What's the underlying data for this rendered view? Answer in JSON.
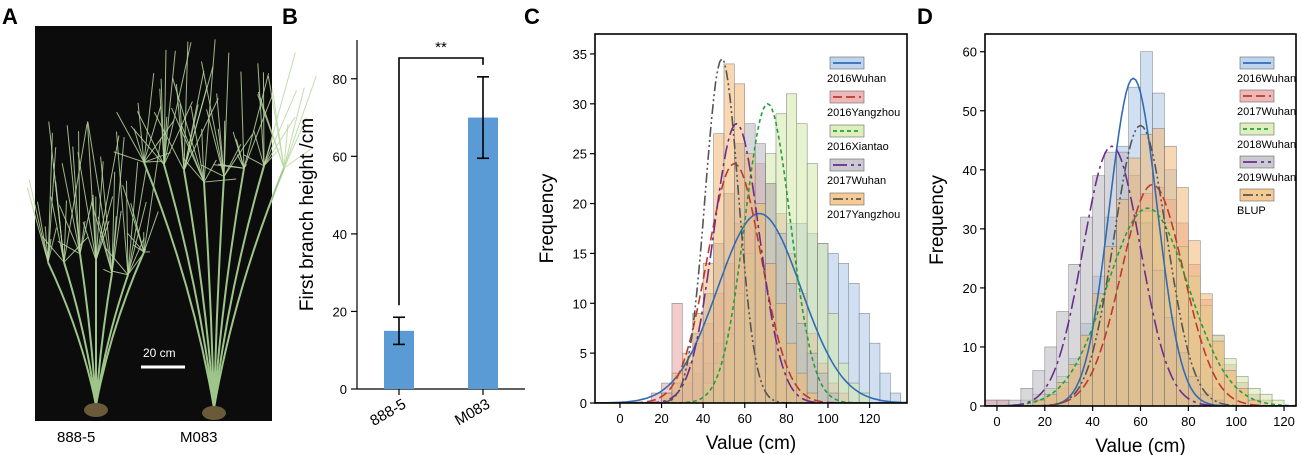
{
  "panel_labels": [
    "A",
    "B",
    "C",
    "D"
  ],
  "photo": {
    "left_label": "888-5",
    "right_label": "M083",
    "scale_label": "20 cm"
  },
  "colors": {
    "bar": "#5b9bd5",
    "photo_bg": "#0c0c0c",
    "plant_stem": "#9ec58a",
    "plant_pod": "#b8d6a0"
  },
  "chart_data": [
    {
      "panel": "B",
      "type": "bar",
      "categories": [
        "888-5",
        "M083"
      ],
      "values": [
        15,
        70
      ],
      "errors": [
        3.5,
        10.5
      ],
      "ylabel": "First branch height /cm",
      "xlabel": "",
      "ylim": [
        0,
        90
      ],
      "yticks": [
        0,
        20,
        40,
        60,
        80
      ],
      "significance": "**"
    },
    {
      "panel": "C",
      "type": "histogram",
      "xlabel": "Value (cm)",
      "ylabel": "Frequency",
      "xlim": [
        -12,
        138
      ],
      "ylim": [
        0,
        37
      ],
      "xticks": [
        0,
        20,
        40,
        60,
        80,
        100,
        120
      ],
      "yticks": [
        0,
        5,
        10,
        15,
        20,
        25,
        30,
        35
      ],
      "bin_start": -5,
      "bin_width": 5,
      "series": [
        {
          "name": "2016Wuhan",
          "color": "#2f6cb5",
          "fill": "#a9c6e8",
          "dash": "",
          "curve": {
            "mean": 67,
            "sd": 20,
            "peak": 19
          },
          "counts": [
            0,
            0,
            0,
            0,
            0,
            0,
            1,
            2,
            3,
            4,
            6,
            7,
            9,
            11,
            13,
            14,
            16,
            18,
            18,
            17,
            16,
            15,
            14,
            12,
            9,
            6,
            3,
            1,
            0
          ]
        },
        {
          "name": "2016Yangzhou",
          "color": "#c0392b",
          "fill": "#e8a0a0",
          "dash": "9,4",
          "curve": {
            "mean": 55,
            "sd": 13,
            "peak": 24
          },
          "counts": [
            0,
            0,
            0,
            0,
            1,
            2,
            10,
            4,
            6,
            8,
            11,
            14,
            18,
            22,
            24,
            22,
            19,
            15,
            11,
            7,
            4,
            2,
            1,
            0,
            0,
            0,
            0,
            0,
            0
          ]
        },
        {
          "name": "2016Xiantao",
          "color": "#22a03a",
          "fill": "#d4e8a8",
          "dash": "4,3",
          "curve": {
            "mean": 71,
            "sd": 11,
            "peak": 30
          },
          "counts": [
            0,
            0,
            0,
            0,
            0,
            0,
            0,
            0,
            0,
            2,
            4,
            7,
            11,
            15,
            20,
            25,
            29,
            31,
            28,
            24,
            16,
            9,
            4,
            2,
            1,
            0,
            0,
            0,
            0
          ]
        },
        {
          "name": "2017Wuhan",
          "color": "#6b2d8f",
          "fill": "#b8b8c0",
          "dash": "14,4,3,4",
          "curve": {
            "mean": 56,
            "sd": 11,
            "peak": 28
          },
          "counts": [
            0,
            0,
            0,
            0,
            0,
            1,
            2,
            4,
            7,
            11,
            16,
            21,
            26,
            28,
            26,
            22,
            17,
            12,
            8,
            5,
            3,
            1,
            0,
            0,
            0,
            0,
            0,
            0,
            0
          ]
        },
        {
          "name": "2017Yangzhou",
          "color": "#555555",
          "fill": "#f2b872",
          "dash": "10,3,2,3,2,3",
          "curve": {
            "mean": 49,
            "sd": 8,
            "peak": 34.5
          },
          "counts": [
            0,
            0,
            0,
            0,
            0,
            1,
            3,
            5,
            9,
            14,
            27,
            34,
            32,
            25,
            20,
            14,
            10,
            6,
            3,
            1,
            0,
            0,
            0,
            0,
            0,
            0,
            0,
            0,
            0
          ]
        }
      ]
    },
    {
      "panel": "D",
      "type": "histogram",
      "xlabel": "Value (cm)",
      "ylabel": "Frequency",
      "xlim": [
        -5,
        125
      ],
      "ylim": [
        0,
        63
      ],
      "xticks": [
        0,
        20,
        40,
        60,
        80,
        100,
        120
      ],
      "yticks": [
        0,
        10,
        20,
        30,
        40,
        50,
        60
      ],
      "bin_start": -5,
      "bin_width": 5,
      "series": [
        {
          "name": "2016Wuhan",
          "color": "#2f6cb5",
          "fill": "#a9c6e8",
          "dash": "",
          "curve": {
            "mean": 57,
            "sd": 10,
            "peak": 55.5
          },
          "counts": [
            1,
            1,
            0,
            0,
            1,
            2,
            4,
            8,
            14,
            22,
            32,
            44,
            54,
            60,
            53,
            40,
            27,
            15,
            7,
            3,
            1,
            0,
            0,
            0,
            0,
            0
          ]
        },
        {
          "name": "2017Wuhan",
          "color": "#c0392b",
          "fill": "#e8a0a0",
          "dash": "9,4",
          "curve": {
            "mean": 65,
            "sd": 13,
            "peak": 37.5
          },
          "counts": [
            1,
            1,
            0,
            0,
            1,
            2,
            3,
            6,
            10,
            15,
            21,
            27,
            33,
            36,
            37,
            35,
            31,
            24,
            18,
            12,
            7,
            4,
            2,
            1,
            0,
            0
          ]
        },
        {
          "name": "2018Wuhan",
          "color": "#22a03a",
          "fill": "#d4e8a8",
          "dash": "4,3",
          "curve": {
            "mean": 63,
            "sd": 17,
            "peak": 33.5
          },
          "counts": [
            0,
            0,
            0,
            1,
            2,
            3,
            5,
            8,
            12,
            17,
            22,
            27,
            31,
            33,
            33,
            31,
            27,
            22,
            17,
            12,
            8,
            5,
            3,
            2,
            1,
            0
          ]
        },
        {
          "name": "2019Wuhan",
          "color": "#6b2d8f",
          "fill": "#b8b8c0",
          "dash": "14,4,3,4",
          "curve": {
            "mean": 48,
            "sd": 12,
            "peak": 44
          },
          "counts": [
            0,
            0,
            1,
            3,
            6,
            10,
            16,
            24,
            32,
            39,
            43,
            43,
            39,
            31,
            23,
            15,
            9,
            5,
            2,
            1,
            0,
            0,
            0,
            0,
            0,
            0
          ]
        },
        {
          "name": "BLUP",
          "color": "#555555",
          "fill": "#f2b872",
          "dash": "10,3,2,3,2,3",
          "curve": {
            "mean": 60,
            "sd": 11,
            "peak": 47.5
          },
          "counts": [
            0,
            0,
            0,
            0,
            1,
            2,
            4,
            7,
            12,
            19,
            27,
            35,
            42,
            46,
            47,
            44,
            37,
            28,
            19,
            11,
            6,
            3,
            1,
            0,
            0,
            0
          ]
        }
      ]
    }
  ]
}
